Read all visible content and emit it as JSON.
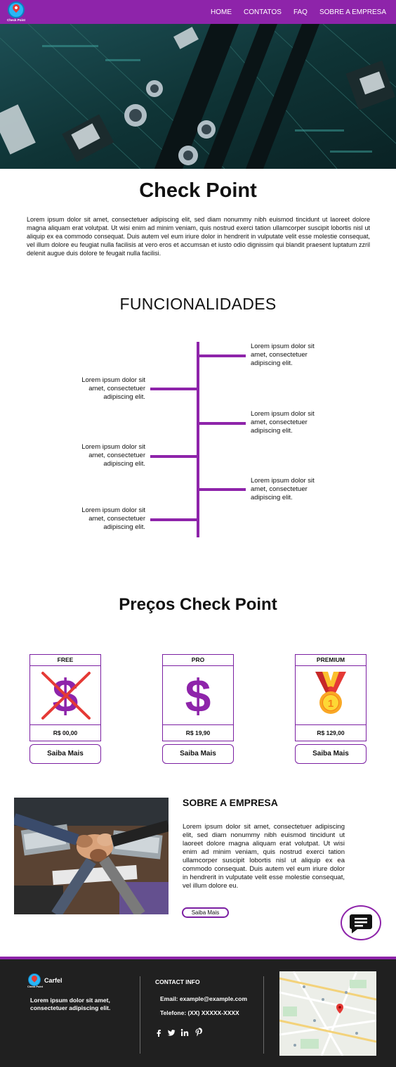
{
  "nav": {
    "logo_text": "Check Point",
    "links": [
      "HOME",
      "CONTATOS",
      "FAQ",
      "SOBRE A EMPRESA"
    ]
  },
  "intro": {
    "title": "Check Point",
    "text": "Lorem ipsum dolor sit amet, consectetuer adipiscing elit, sed diam nonummy nibh euismod tincidunt ut laoreet dolore magna aliquam erat volutpat. Ut wisi enim ad minim veniam, quis nostrud exerci tation ullamcorper suscipit lobortis nisl ut aliquip ex ea commodo consequat. Duis autem vel eum iriure dolor in hendrerit in vulputate velit esse molestie consequat, vel illum dolore eu feugiat nulla facilisis at vero eros et accumsan et iusto odio dignissim qui blandit praesent luptatum zzril delenit augue duis dolore te feugait nulla facilisi."
  },
  "features": {
    "title": "FUNCIONALIDADES",
    "items": [
      "Lorem ipsum dolor sit amet, consectetuer adipiscing elit.",
      "Lorem ipsum dolor sit amet, consectetuer adipiscing elit.",
      "Lorem ipsum dolor sit amet, consectetuer adipiscing elit.",
      "Lorem ipsum dolor sit amet, consectetuer adipiscing elit.",
      "Lorem ipsum dolor sit amet, consectetuer adipiscing elit.",
      "Lorem ipsum dolor sit amet, consectetuer adipiscing elit."
    ]
  },
  "pricing": {
    "title": "Preços Check Point",
    "plans": [
      {
        "name": "FREE",
        "price": "R$ 00,00",
        "button": "Saiba Mais",
        "icon": "crossed-dollar-icon"
      },
      {
        "name": "PRO",
        "price": "R$ 19,90",
        "button": "Saiba Mais",
        "icon": "dollar-icon"
      },
      {
        "name": "PREMIUM",
        "price": "R$ 129,00",
        "button": "Saiba Mais",
        "icon": "medal-icon"
      }
    ],
    "medal_rank": "1"
  },
  "about": {
    "title": "SOBRE A EMPRESA",
    "text": "Lorem ipsum dolor sit amet, consectetuer adipiscing elit, sed diam nonummy nibh euismod tincidunt ut laoreet dolore magna aliquam erat volutpat. Ut wisi enim ad minim veniam, quis nostrud exerci tation ullamcorper suscipit lobortis nisl ut aliquip ex ea commodo consequat. Duis autem vel eum iriure dolor in hendrerit in vulputate velit esse molestie consequat, vel illum dolore eu.",
    "button": "Saiba Mais"
  },
  "footer": {
    "logo_text": "Check Point",
    "brand": "Carfel",
    "description": "Lorem ipsum dolor sit amet, consectetuer adipiscing elit.",
    "contact_title": "CONTACT INFO",
    "email": "Email: example@example.com",
    "phone": "Telefone: (XX) XXXXX-XXXX",
    "social_icons": [
      "facebook-icon",
      "twitter-icon",
      "linkedin-icon",
      "pinterest-icon"
    ]
  },
  "colors": {
    "brand_purple": "#8e24aa",
    "footer_bg": "#202020"
  }
}
